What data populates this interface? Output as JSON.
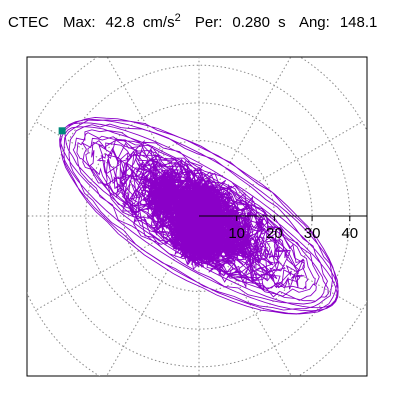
{
  "header": {
    "station": "CTEC",
    "max_label": "Max:",
    "max_value": "42.8",
    "max_unit": "cm/s",
    "max_unit_exp": "2",
    "per_label": "Per:",
    "per_value": "0.280",
    "per_unit": "s",
    "ang_label": "Ang:",
    "ang_value": "148.1"
  },
  "colors": {
    "trace": "#8a00c8",
    "marker": "#00897a",
    "grid": "#888888",
    "axis": "#000000"
  },
  "chart_data": {
    "type": "scatter",
    "kind": "polar-particle-motion",
    "units": "cm/s2",
    "radial_ticks": [
      "10",
      "20",
      "30",
      "40"
    ],
    "radial_tick_values": [
      10,
      20,
      30,
      40
    ],
    "rmax": 50,
    "angular_divisions_deg": 30,
    "grid": true,
    "max_amplitude": 42.8,
    "angle_deg": 148.1,
    "marker_point": {
      "x": -36.3,
      "y": 22.6
    }
  }
}
